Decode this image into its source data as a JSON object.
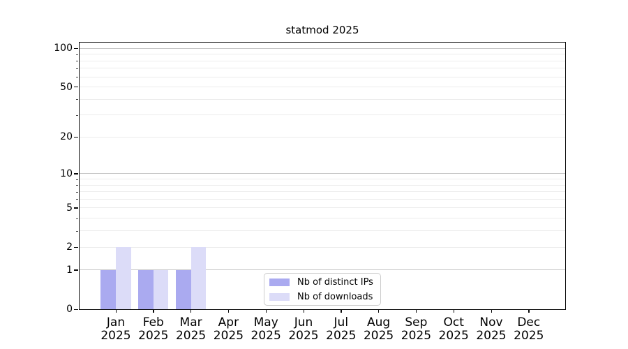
{
  "chart_data": {
    "type": "bar",
    "title": "statmod 2025",
    "categories": [
      "Jan",
      "Feb",
      "Mar",
      "Apr",
      "May",
      "Jun",
      "Jul",
      "Aug",
      "Sep",
      "Oct",
      "Nov",
      "Dec"
    ],
    "year_label": "2025",
    "series": [
      {
        "name": "Nb of distinct IPs",
        "color": "#aaaaf0",
        "values": [
          1,
          1,
          1,
          0,
          0,
          0,
          0,
          0,
          0,
          0,
          0,
          0
        ]
      },
      {
        "name": "Nb of downloads",
        "color": "#dcdcf8",
        "values": [
          2,
          1,
          2,
          0,
          0,
          0,
          0,
          0,
          0,
          0,
          0,
          0
        ]
      }
    ],
    "yscale": "log1p",
    "ylim": [
      0,
      112
    ],
    "yticks": [
      0,
      1,
      2,
      5,
      10,
      20,
      50,
      100
    ],
    "grid": {
      "major_values": [
        1,
        10,
        100
      ],
      "minor_values": [
        2,
        3,
        4,
        5,
        6,
        7,
        8,
        9,
        20,
        30,
        40,
        50,
        60,
        70,
        80,
        90
      ],
      "major_color": "#c6c6c6",
      "minor_color": "#ececec"
    },
    "legend_position": "bottom-center-inside",
    "axis_color": "#0a0a0a"
  }
}
